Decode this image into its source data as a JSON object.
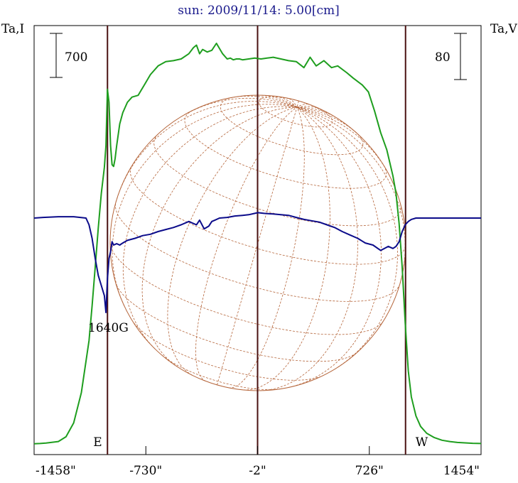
{
  "chart_data": {
    "type": "line",
    "title": "sun: 2009/11/14: 5.00[cm]",
    "ylabel_left": "Ta,I",
    "ylabel_right": "Ta,V",
    "scale_left": "700",
    "scale_right": "80",
    "xlim": [
      -1458,
      1454
    ],
    "x_tick_labels": [
      "-1458\"",
      "-730\"",
      "-2\"",
      "726\"",
      "1454\""
    ],
    "x_tick_values": [
      -1458,
      -730,
      -2,
      726,
      1454
    ],
    "markers": [
      {
        "label": "E",
        "x": -980
      },
      {
        "label": "",
        "x": -2
      },
      {
        "label": "W",
        "x": 962
      }
    ],
    "annotation": "1640G",
    "grid": false,
    "colors": {
      "intensity": "#1e9e1e",
      "polarization": "#0b0b8a",
      "disk": "#b5653a",
      "markers": "#4a1010",
      "title": "#1a1a8c"
    },
    "series": [
      {
        "key": "intensity",
        "x": [
          -1458,
          -1420,
          -1380,
          -1300,
          -1250,
          -1200,
          -1150,
          -1100,
          -1080,
          -1060,
          -1040,
          -1020,
          -1000,
          -990,
          -980,
          -970,
          -960,
          -950,
          -940,
          -930,
          -920,
          -900,
          -880,
          -850,
          -820,
          -780,
          -740,
          -700,
          -650,
          -600,
          -550,
          -500,
          -450,
          -420,
          -400,
          -380,
          -360,
          -330,
          -300,
          -270,
          -230,
          -200,
          -180,
          -160,
          -140,
          -120,
          -100,
          -60,
          -20,
          20,
          60,
          100,
          150,
          200,
          250,
          300,
          320,
          340,
          380,
          430,
          480,
          520,
          580,
          620,
          680,
          720,
          760,
          800,
          840,
          880,
          900,
          920,
          940,
          960,
          980,
          1000,
          1030,
          1060,
          1100,
          1150,
          1200,
          1250,
          1300,
          1350,
          1400,
          1454
        ],
        "values": [
          60,
          62,
          68,
          85,
          140,
          300,
          650,
          1250,
          1650,
          2100,
          2550,
          2950,
          3250,
          3500,
          4150,
          4000,
          3500,
          3280,
          3260,
          3350,
          3500,
          3750,
          3880,
          4000,
          4060,
          4080,
          4200,
          4320,
          4420,
          4470,
          4480,
          4500,
          4560,
          4630,
          4660,
          4560,
          4610,
          4580,
          4600,
          4680,
          4560,
          4500,
          4510,
          4490,
          4500,
          4500,
          4490,
          4500,
          4510,
          4500,
          4510,
          4520,
          4500,
          4480,
          4470,
          4400,
          4460,
          4520,
          4420,
          4480,
          4400,
          4420,
          4340,
          4280,
          4200,
          4120,
          3900,
          3650,
          3450,
          3150,
          2950,
          2600,
          2100,
          1450,
          900,
          600,
          380,
          260,
          180,
          130,
          100,
          85,
          75,
          70,
          65,
          62
        ]
      },
      {
        "key": "polarization",
        "x": [
          -1458,
          -1400,
          -1300,
          -1200,
          -1120,
          -1100,
          -1080,
          -1060,
          -1040,
          -1020,
          -1000,
          -990,
          -980,
          -970,
          -960,
          -950,
          -940,
          -920,
          -900,
          -880,
          -850,
          -800,
          -750,
          -700,
          -650,
          -600,
          -550,
          -500,
          -450,
          -400,
          -380,
          -350,
          -320,
          -300,
          -280,
          -250,
          -200,
          -150,
          -100,
          -60,
          -20,
          0,
          40,
          100,
          150,
          200,
          250,
          300,
          350,
          400,
          450,
          500,
          550,
          600,
          650,
          700,
          750,
          800,
          850,
          880,
          900,
          920,
          940,
          960,
          980,
          1000,
          1030,
          1060,
          1100,
          1200,
          1300,
          1400,
          1454
        ],
        "values": [
          0,
          1,
          2,
          2,
          0,
          -10,
          -30,
          -60,
          -85,
          -100,
          -115,
          -140,
          -90,
          -60,
          -50,
          -35,
          -40,
          -38,
          -40,
          -37,
          -33,
          -30,
          -26,
          -24,
          -20,
          -17,
          -14,
          -10,
          -5,
          -10,
          -3,
          -16,
          -12,
          -5,
          -3,
          0,
          1,
          3,
          4,
          5,
          7,
          8,
          7,
          6,
          5,
          4,
          1,
          -2,
          -4,
          -6,
          -10,
          -14,
          -20,
          -25,
          -30,
          -37,
          -40,
          -48,
          -42,
          -45,
          -42,
          -35,
          -20,
          -10,
          -5,
          -2,
          0,
          0,
          0,
          0,
          0,
          0,
          0
        ]
      }
    ]
  }
}
